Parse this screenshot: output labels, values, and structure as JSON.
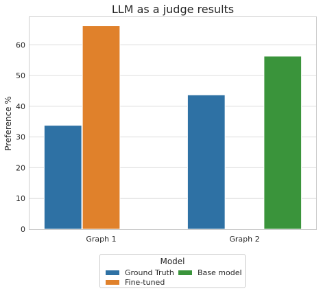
{
  "chart_data": {
    "type": "bar",
    "title": "LLM as a judge results",
    "xlabel": "",
    "ylabel": "Preference %",
    "categories": [
      "Graph 1",
      "Graph 2"
    ],
    "ylim": [
      0,
      69
    ],
    "yticks": [
      0,
      10,
      20,
      30,
      40,
      50,
      60
    ],
    "grid": true,
    "legend": {
      "title": "Model",
      "placement": "bottom-center"
    },
    "series": [
      {
        "name": "Ground Truth",
        "color": "#2e71a4",
        "values": [
          33.8,
          43.7
        ]
      },
      {
        "name": "Fine-tuned",
        "color": "#e0812b",
        "values": [
          66.2,
          null
        ]
      },
      {
        "name": "Base model",
        "color": "#3a943b",
        "values": [
          null,
          56.3
        ]
      }
    ]
  }
}
